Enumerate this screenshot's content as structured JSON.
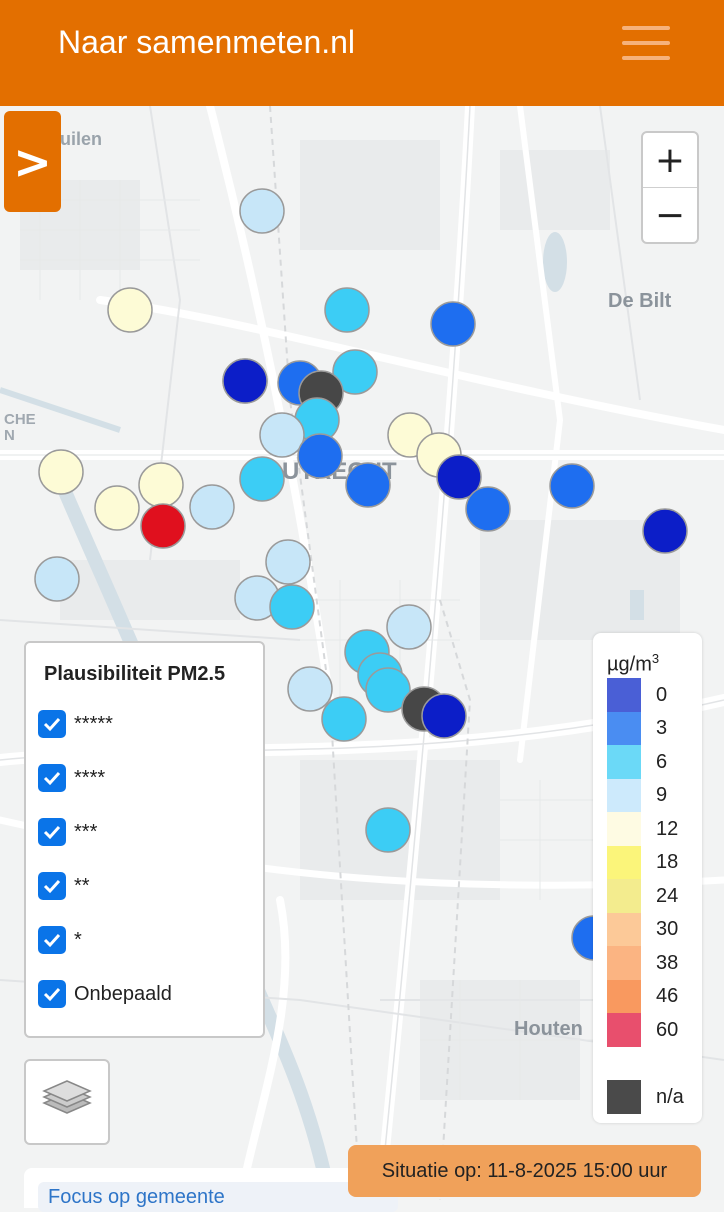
{
  "header": {
    "title": "Naar samenmeten.nl",
    "menu_icon": "hamburger-icon"
  },
  "sidebar_toggle": {
    "label": ">"
  },
  "zoom": {
    "in_label": "+",
    "out_label": "−"
  },
  "map": {
    "places": [
      "uilen",
      "De Bilt",
      "CHE",
      "N",
      "UTRECHT",
      "Houten"
    ],
    "markers": [
      {
        "class": "9"
      },
      {
        "class": "12"
      },
      {
        "class": "6"
      },
      {
        "class": "3"
      },
      {
        "class": "0"
      },
      {
        "class": "0"
      },
      {
        "class": "6"
      },
      {
        "class": "3"
      },
      {
        "class": "na"
      },
      {
        "class": "6"
      },
      {
        "class": "9"
      },
      {
        "class": "3"
      },
      {
        "class": "12"
      },
      {
        "class": "12"
      },
      {
        "class": "12"
      },
      {
        "class": "12"
      },
      {
        "class": "12"
      },
      {
        "class": "60"
      },
      {
        "class": "9"
      },
      {
        "class": "6"
      },
      {
        "class": "3"
      },
      {
        "class": "0"
      },
      {
        "class": "3"
      },
      {
        "class": "3"
      },
      {
        "class": "0"
      },
      {
        "class": "9"
      },
      {
        "class": "9"
      },
      {
        "class": "9"
      },
      {
        "class": "6"
      },
      {
        "class": "9"
      },
      {
        "class": "6"
      },
      {
        "class": "6"
      },
      {
        "class": "6"
      },
      {
        "class": "9"
      },
      {
        "class": "6"
      },
      {
        "class": "na"
      },
      {
        "class": "0"
      },
      {
        "class": "6"
      },
      {
        "class": "3"
      }
    ]
  },
  "plausibility_legend": {
    "title": "Plausibiliteit PM2.5",
    "items": [
      {
        "label": "*****",
        "checked": true
      },
      {
        "label": "****",
        "checked": true
      },
      {
        "label": "***",
        "checked": true
      },
      {
        "label": "**",
        "checked": true
      },
      {
        "label": "*",
        "checked": true
      },
      {
        "label": "Onbepaald",
        "checked": true
      }
    ]
  },
  "layers_button": {
    "icon": "layers-icon"
  },
  "concentration_legend": {
    "unit": "µg/m",
    "unit_sup": "3",
    "classes": [
      {
        "label": "0",
        "color": "#4a5fd6"
      },
      {
        "label": "3",
        "color": "#4a8df2"
      },
      {
        "label": "6",
        "color": "#6bd9f7"
      },
      {
        "label": "9",
        "color": "#cdeafc"
      },
      {
        "label": "12",
        "color": "#fefbe3"
      },
      {
        "label": "18",
        "color": "#fbf57a"
      },
      {
        "label": "24",
        "color": "#f3ec8e"
      },
      {
        "label": "30",
        "color": "#fcc998"
      },
      {
        "label": "38",
        "color": "#fbb482"
      },
      {
        "label": "46",
        "color": "#f9995f"
      },
      {
        "label": "60",
        "color": "#e84f6d"
      }
    ],
    "na_label": "n/a",
    "na_color": "#4a4a4a"
  },
  "marker_colors": {
    "0": "#0c1ec8",
    "3": "#1e6ef0",
    "6": "#3ccdf5",
    "9": "#c7e6f8",
    "12": "#fdfbd6",
    "60": "#e0101e",
    "na": "#474747"
  },
  "status": {
    "situatie": "Situatie op: 11-8-2025 15:00 uur"
  },
  "focus": {
    "label": "Focus op gemeente"
  }
}
